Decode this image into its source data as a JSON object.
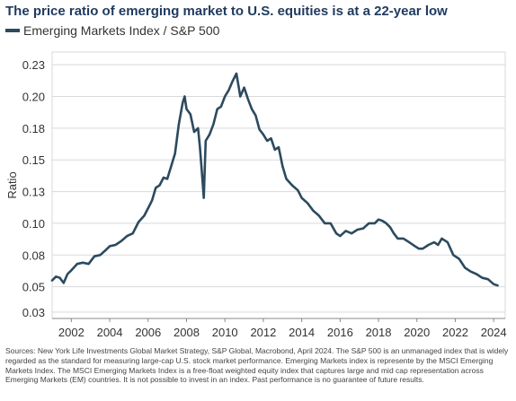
{
  "title": "The price ratio of emerging market to U.S. equities is at a 22-year low",
  "source_note": "Sources: New York Life Investments Global Market Strategy, S&P Global, Macrobond, April 2024. The S&P 500 is an unmanaged index that is widely regarded as the standard for measuring large-cap U.S. stock market performance. Emerging Markets index is represente by the MSCI Emerging Markets Index. The MSCI Emerging Markets Index is a free-float weighted equity index that captures large and mid cap representation across Emerging Markets (EM) countries. It is not possible to invest in an index. Past performance is no guarantee of future results.",
  "colors": {
    "title": "#1f3a5f",
    "series": "#2c4a5f",
    "grid": "#d9d9d9",
    "axis": "#888888",
    "tick_text": "#333333"
  },
  "chart_data": {
    "type": "line",
    "title": "The price ratio of emerging market to U.S. equities is at a 22-year low",
    "xlabel": "",
    "ylabel": "Ratio",
    "xlim": [
      2001.0,
      2024.6
    ],
    "ylim": [
      0.025,
      0.235
    ],
    "xticks": [
      2002,
      2004,
      2006,
      2008,
      2010,
      2012,
      2014,
      2016,
      2018,
      2020,
      2022,
      2024
    ],
    "yticks": [
      0.03,
      0.05,
      0.075,
      0.1,
      0.125,
      0.15,
      0.175,
      0.2,
      0.225
    ],
    "ytick_labels": [
      "0.03",
      "0.05",
      "0.08",
      "0.10",
      "0.13",
      "0.15",
      "0.18",
      "0.20",
      "0.23"
    ],
    "grid": "horizontal",
    "legend": "top-left",
    "series": [
      {
        "name": "Emerging Markets Index / S&P 500",
        "x": [
          2001.0,
          2001.2,
          2001.4,
          2001.6,
          2001.8,
          2002.0,
          2002.3,
          2002.6,
          2002.9,
          2003.2,
          2003.5,
          2003.8,
          2004.0,
          2004.3,
          2004.6,
          2004.9,
          2005.2,
          2005.5,
          2005.8,
          2006.0,
          2006.2,
          2006.4,
          2006.6,
          2006.8,
          2007.0,
          2007.2,
          2007.4,
          2007.6,
          2007.8,
          2007.9,
          2008.0,
          2008.2,
          2008.4,
          2008.6,
          2008.7,
          2008.8,
          2008.9,
          2009.0,
          2009.2,
          2009.4,
          2009.6,
          2009.8,
          2010.0,
          2010.2,
          2010.4,
          2010.6,
          2010.8,
          2011.0,
          2011.2,
          2011.4,
          2011.6,
          2011.8,
          2012.0,
          2012.2,
          2012.4,
          2012.6,
          2012.8,
          2013.0,
          2013.2,
          2013.5,
          2013.8,
          2014.0,
          2014.3,
          2014.6,
          2014.9,
          2015.2,
          2015.5,
          2015.8,
          2016.0,
          2016.3,
          2016.6,
          2016.9,
          2017.2,
          2017.5,
          2017.8,
          2018.0,
          2018.2,
          2018.4,
          2018.6,
          2018.8,
          2019.0,
          2019.3,
          2019.6,
          2019.9,
          2020.1,
          2020.3,
          2020.6,
          2020.9,
          2021.1,
          2021.3,
          2021.6,
          2021.9,
          2022.2,
          2022.5,
          2022.8,
          2023.1,
          2023.4,
          2023.7,
          2024.0,
          2024.2
        ],
        "values": [
          0.055,
          0.058,
          0.057,
          0.053,
          0.06,
          0.063,
          0.068,
          0.069,
          0.068,
          0.074,
          0.075,
          0.079,
          0.082,
          0.083,
          0.086,
          0.09,
          0.092,
          0.101,
          0.106,
          0.112,
          0.118,
          0.128,
          0.13,
          0.136,
          0.135,
          0.145,
          0.155,
          0.178,
          0.195,
          0.2,
          0.19,
          0.186,
          0.172,
          0.175,
          0.16,
          0.14,
          0.12,
          0.165,
          0.17,
          0.178,
          0.19,
          0.192,
          0.2,
          0.205,
          0.212,
          0.218,
          0.2,
          0.207,
          0.198,
          0.19,
          0.185,
          0.174,
          0.17,
          0.165,
          0.167,
          0.158,
          0.16,
          0.145,
          0.135,
          0.13,
          0.126,
          0.12,
          0.116,
          0.11,
          0.106,
          0.1,
          0.1,
          0.092,
          0.09,
          0.094,
          0.092,
          0.095,
          0.096,
          0.1,
          0.1,
          0.103,
          0.102,
          0.1,
          0.097,
          0.092,
          0.088,
          0.088,
          0.085,
          0.082,
          0.08,
          0.08,
          0.083,
          0.085,
          0.083,
          0.088,
          0.085,
          0.075,
          0.072,
          0.065,
          0.062,
          0.06,
          0.057,
          0.056,
          0.052,
          0.051
        ]
      }
    ]
  }
}
